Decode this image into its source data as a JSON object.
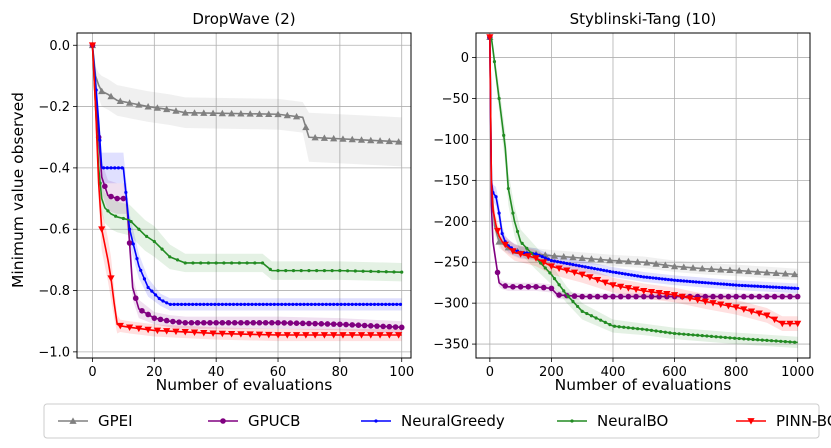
{
  "figure": {
    "ylabel": "Minimum value observed",
    "legend": {
      "placement": "bottom",
      "entries": [
        "GPEI",
        "GPUCB",
        "NeuralGreedy",
        "NeuralBO",
        "PINN-BO"
      ]
    },
    "colors": {
      "GPEI": "#808080",
      "GPUCB": "#800080",
      "NeuralGreedy": "#0000ff",
      "NeuralBO": "#228b22",
      "PINN-BO": "#ff0000"
    },
    "markers": {
      "GPEI": "triangle-up",
      "GPUCB": "circle",
      "NeuralGreedy": "point",
      "NeuralBO": "point",
      "PINN-BO": "triangle-down"
    }
  },
  "chart_data": [
    {
      "type": "line",
      "title": "DropWave (2)",
      "xlabel": "Number of evaluations",
      "ylabel": "Minimum value observed",
      "xlim": [
        -5,
        103
      ],
      "ylim": [
        -1.02,
        0.04
      ],
      "xticks": [
        0,
        20,
        40,
        60,
        80,
        100
      ],
      "yticks": [
        0.0,
        -0.2,
        -0.4,
        -0.6,
        -0.8,
        -1.0
      ],
      "ytick_labels": [
        "0.0",
        "−0.2",
        "−0.4",
        "−0.6",
        "−0.8",
        "−1.0"
      ],
      "grid": true,
      "series": [
        {
          "name": "GPEI",
          "x": [
            0,
            1,
            2,
            3,
            5,
            8,
            13,
            18,
            25,
            30,
            60,
            68,
            70,
            90,
            100
          ],
          "y": [
            0.0,
            -0.1,
            -0.13,
            -0.15,
            -0.16,
            -0.18,
            -0.19,
            -0.2,
            -0.21,
            -0.22,
            -0.225,
            -0.235,
            -0.3,
            -0.31,
            -0.315
          ],
          "band": [
            0.03,
            0.03,
            0.04,
            0.05,
            0.05,
            0.05,
            0.05,
            0.05,
            0.05,
            0.05,
            0.05,
            0.05,
            0.08,
            0.08,
            0.08
          ]
        },
        {
          "name": "GPUCB",
          "x": [
            0,
            1,
            2,
            3,
            5,
            8,
            11,
            13,
            15,
            20,
            25,
            30,
            40,
            60,
            80,
            100
          ],
          "y": [
            0.0,
            -0.15,
            -0.3,
            -0.43,
            -0.49,
            -0.5,
            -0.5,
            -0.79,
            -0.86,
            -0.89,
            -0.9,
            -0.905,
            -0.905,
            -0.905,
            -0.91,
            -0.92
          ],
          "band": [
            0.02,
            0.03,
            0.05,
            0.05,
            0.05,
            0.05,
            0.05,
            0.04,
            0.03,
            0.02,
            0.02,
            0.02,
            0.02,
            0.02,
            0.02,
            0.02
          ]
        },
        {
          "name": "NeuralGreedy",
          "x": [
            0,
            1,
            2,
            3,
            10,
            12,
            15,
            18,
            22,
            25,
            30,
            40,
            60,
            100
          ],
          "y": [
            0.0,
            -0.12,
            -0.25,
            -0.4,
            -0.4,
            -0.6,
            -0.72,
            -0.79,
            -0.83,
            -0.845,
            -0.845,
            -0.845,
            -0.845,
            -0.845
          ],
          "band": [
            0.02,
            0.03,
            0.05,
            0.05,
            0.05,
            0.05,
            0.04,
            0.03,
            0.02,
            0.02,
            0.02,
            0.02,
            0.02,
            0.02
          ]
        },
        {
          "name": "NeuralBO",
          "x": [
            0,
            1,
            2,
            3,
            4,
            6,
            8,
            12,
            17,
            20,
            25,
            30,
            40,
            55,
            58,
            80,
            100
          ],
          "y": [
            0.0,
            -0.2,
            -0.4,
            -0.5,
            -0.53,
            -0.55,
            -0.56,
            -0.57,
            -0.62,
            -0.64,
            -0.69,
            -0.71,
            -0.71,
            -0.71,
            -0.735,
            -0.735,
            -0.74
          ],
          "band": [
            0.02,
            0.04,
            0.05,
            0.05,
            0.05,
            0.05,
            0.05,
            0.05,
            0.05,
            0.05,
            0.04,
            0.03,
            0.03,
            0.03,
            0.03,
            0.03,
            0.03
          ]
        },
        {
          "name": "PINN-BO",
          "x": [
            0,
            1,
            2,
            3,
            4,
            5,
            6,
            7,
            8,
            9,
            12,
            20,
            30,
            40,
            60,
            100
          ],
          "y": [
            0.0,
            -0.2,
            -0.45,
            -0.6,
            -0.65,
            -0.7,
            -0.76,
            -0.84,
            -0.91,
            -0.915,
            -0.92,
            -0.93,
            -0.935,
            -0.94,
            -0.945,
            -0.945
          ],
          "band": [
            0.02,
            0.05,
            0.06,
            0.07,
            0.07,
            0.07,
            0.07,
            0.05,
            0.03,
            0.02,
            0.02,
            0.02,
            0.02,
            0.02,
            0.02,
            0.02
          ]
        }
      ]
    },
    {
      "type": "line",
      "title": "Styblinski-Tang (10)",
      "xlabel": "Number of evaluations",
      "ylabel": "",
      "xlim": [
        -45,
        1040
      ],
      "ylim": [
        -367,
        30
      ],
      "xticks": [
        0,
        200,
        400,
        600,
        800,
        1000
      ],
      "yticks": [
        0,
        -50,
        -100,
        -150,
        -200,
        -250,
        -300,
        -350
      ],
      "ytick_labels": [
        "0",
        "−50",
        "−100",
        "−150",
        "−200",
        "−250",
        "−300",
        "−350"
      ],
      "grid": true,
      "series": [
        {
          "name": "GPEI",
          "x": [
            0,
            5,
            15,
            30,
            60,
            100,
            150,
            200,
            300,
            400,
            500,
            600,
            700,
            800,
            1000
          ],
          "y": [
            25,
            -150,
            -205,
            -225,
            -232,
            -238,
            -240,
            -242,
            -245,
            -248,
            -250,
            -255,
            -258,
            -260,
            -265
          ],
          "band": [
            2,
            10,
            10,
            8,
            8,
            8,
            7,
            7,
            7,
            7,
            7,
            7,
            7,
            7,
            7
          ]
        },
        {
          "name": "GPUCB",
          "x": [
            0,
            5,
            10,
            20,
            30,
            40,
            60,
            80,
            100,
            150,
            200,
            220,
            300,
            500,
            800,
            1000
          ],
          "y": [
            25,
            -180,
            -225,
            -250,
            -275,
            -278,
            -280,
            -280,
            -280,
            -280,
            -282,
            -290,
            -292,
            -292,
            -292,
            -292
          ],
          "band": [
            2,
            8,
            8,
            6,
            5,
            5,
            5,
            5,
            5,
            5,
            5,
            5,
            4,
            4,
            4,
            4
          ]
        },
        {
          "name": "NeuralGreedy",
          "x": [
            0,
            5,
            10,
            20,
            30,
            40,
            50,
            60,
            80,
            100,
            150,
            200,
            300,
            400,
            500,
            600,
            700,
            800,
            1000
          ],
          "y": [
            25,
            -150,
            -165,
            -170,
            -190,
            -215,
            -225,
            -230,
            -235,
            -238,
            -240,
            -248,
            -255,
            -262,
            -268,
            -272,
            -275,
            -278,
            -282
          ],
          "band": [
            2,
            8,
            10,
            12,
            12,
            10,
            8,
            8,
            7,
            7,
            7,
            7,
            7,
            6,
            6,
            6,
            6,
            6,
            6
          ]
        },
        {
          "name": "NeuralBO",
          "x": [
            0,
            5,
            10,
            20,
            30,
            40,
            50,
            60,
            80,
            100,
            150,
            200,
            250,
            300,
            400,
            500,
            600,
            700,
            800,
            1000
          ],
          "y": [
            25,
            24,
            10,
            -20,
            -50,
            -80,
            -110,
            -160,
            -200,
            -225,
            -245,
            -265,
            -290,
            -310,
            -328,
            -332,
            -337,
            -340,
            -343,
            -348
          ],
          "band": [
            2,
            3,
            8,
            12,
            15,
            18,
            20,
            20,
            18,
            15,
            14,
            12,
            10,
            10,
            8,
            7,
            7,
            7,
            7,
            7
          ]
        },
        {
          "name": "PINN-BO",
          "x": [
            0,
            5,
            10,
            20,
            30,
            40,
            60,
            80,
            100,
            150,
            200,
            300,
            400,
            500,
            600,
            700,
            800,
            900,
            950,
            1000
          ],
          "y": [
            25,
            -150,
            -185,
            -205,
            -218,
            -225,
            -232,
            -238,
            -240,
            -245,
            -255,
            -265,
            -278,
            -285,
            -290,
            -298,
            -305,
            -315,
            -325,
            -325
          ],
          "band": [
            2,
            10,
            12,
            12,
            10,
            10,
            10,
            10,
            10,
            10,
            10,
            10,
            9,
            9,
            9,
            9,
            9,
            9,
            9,
            9
          ]
        }
      ]
    }
  ]
}
